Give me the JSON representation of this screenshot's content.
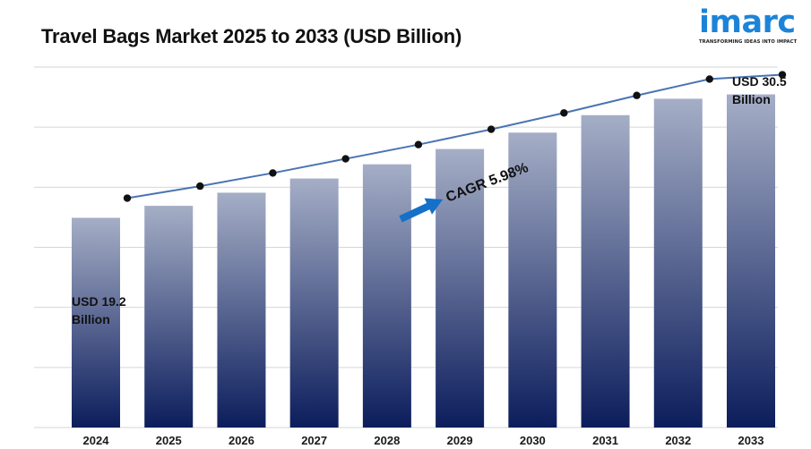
{
  "title": "Travel Bags Market 2025 to 2033 (USD Billion)",
  "logo": {
    "word": "imarc",
    "tagline": "TRANSFORMING IDEAS INTO IMPACT",
    "color": "#1c84d8"
  },
  "chart_data": {
    "type": "bar",
    "title": "Travel Bags Market 2025 to 2033 (USD Billion)",
    "categories": [
      "2024",
      "2025",
      "2026",
      "2027",
      "2028",
      "2029",
      "2030",
      "2031",
      "2032",
      "2033"
    ],
    "values": [
      19.2,
      20.3,
      21.5,
      22.8,
      24.1,
      25.5,
      27.0,
      28.6,
      30.1,
      30.5
    ],
    "trend_line_values": [
      19.2,
      20.3,
      21.5,
      22.8,
      24.1,
      25.5,
      27.0,
      28.6,
      30.1,
      30.5
    ],
    "ylim": [
      0,
      33
    ],
    "grid": true,
    "annotations": {
      "start_value": "USD 19.2",
      "start_unit": "Billion",
      "end_value": "USD 30.5",
      "end_unit": "Billion",
      "cagr": "CAGR 5.98%"
    },
    "colors": {
      "bar_top": "#a5aec6",
      "bar_bottom": "#0c1d5c",
      "line": "#4a74b4",
      "arrow": "#1570c9",
      "grid": "#d6d6d6"
    }
  }
}
